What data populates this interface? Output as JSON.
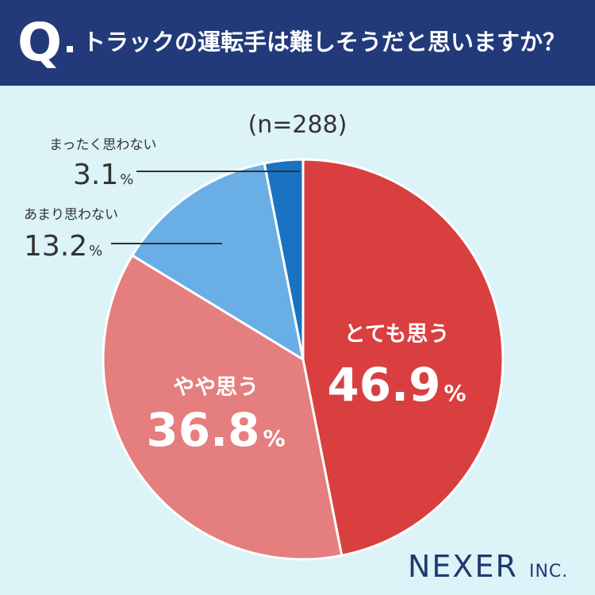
{
  "header": {
    "q_mark": "Q",
    "question": "トラックの運転手は難しそうだと思いますか？"
  },
  "sample_size": "(n=288)",
  "colors": {
    "header_bg": "#223a7a",
    "background": "#dcf3f8",
    "slice_1": "#d93f3f",
    "slice_2": "#e57e7e",
    "slice_3": "#6aaee6",
    "slice_4": "#1a72c2"
  },
  "chart_data": {
    "type": "pie",
    "unit": "%",
    "slices": [
      {
        "label": "とても思う",
        "value": 46.9
      },
      {
        "label": "やや思う",
        "value": 36.8
      },
      {
        "label": "あまり思わない",
        "value": 13.2
      },
      {
        "label": "まったく思わない",
        "value": 3.1
      }
    ]
  },
  "brand": {
    "name": "NEXER",
    "suffix": "INC."
  }
}
